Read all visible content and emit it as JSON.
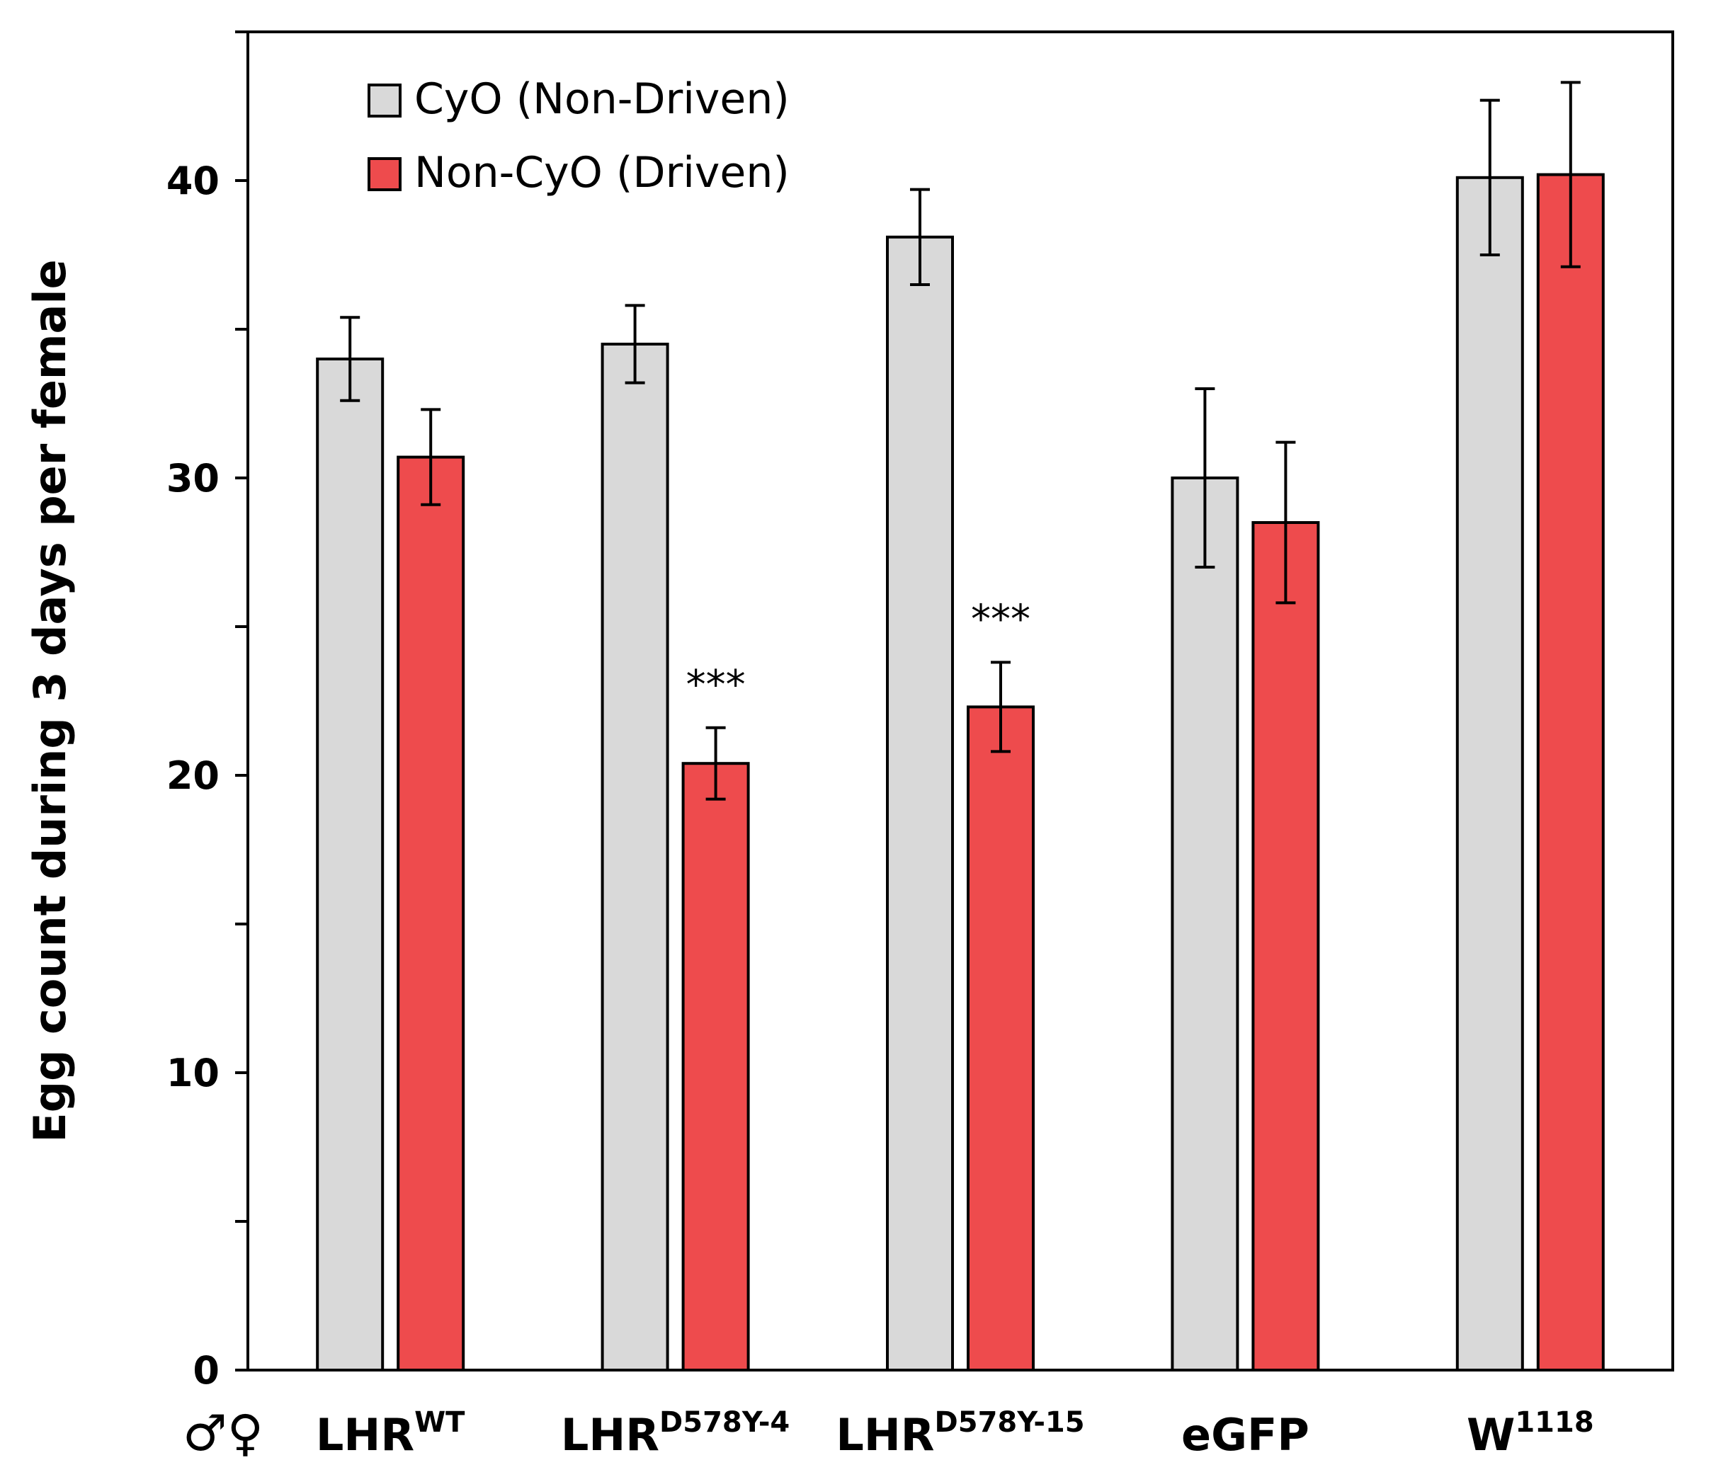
{
  "chart_data": {
    "type": "bar",
    "title": "",
    "xlabel": "",
    "ylabel": "Egg count during 3 days per female",
    "ylim": [
      0,
      45
    ],
    "yticks": [
      0,
      10,
      20,
      30,
      40
    ],
    "sex_symbols": "♂♀",
    "categories": [
      {
        "base": "LHR",
        "sup": "WT"
      },
      {
        "base": "LHR",
        "sup": "D578Y-4"
      },
      {
        "base": "LHR",
        "sup": "D578Y-15"
      },
      {
        "base": "eGFP",
        "sup": ""
      },
      {
        "base": "W",
        "sup": "1118"
      }
    ],
    "series": [
      {
        "name": "CyO (Non-Driven)",
        "color": "#d9d9d9",
        "values": [
          34.0,
          34.5,
          38.1,
          30.0,
          40.1
        ],
        "errors": [
          1.4,
          1.3,
          1.6,
          3.0,
          2.6
        ]
      },
      {
        "name": "Non-CyO (Driven)",
        "color": "#ee4b4d",
        "values": [
          30.7,
          20.4,
          22.3,
          28.5,
          40.2
        ],
        "errors": [
          1.6,
          1.2,
          1.5,
          2.7,
          3.1
        ]
      }
    ],
    "annotations": [
      {
        "category": 1,
        "series": 1,
        "text": "***"
      },
      {
        "category": 2,
        "series": 1,
        "text": "***"
      }
    ],
    "legend_position": "top-left"
  }
}
